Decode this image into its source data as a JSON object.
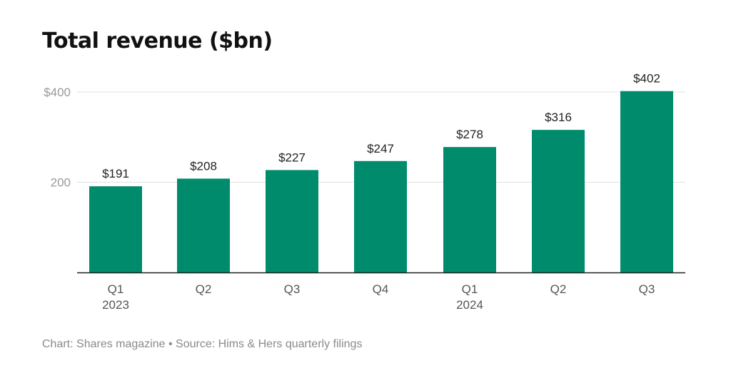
{
  "chart_data": {
    "type": "bar",
    "title": "Total revenue ($bn)",
    "categories": [
      "Q1",
      "Q2",
      "Q3",
      "Q4",
      "Q1",
      "Q2",
      "Q3"
    ],
    "year_labels": [
      "2023",
      "",
      "",
      "",
      "2024",
      "",
      ""
    ],
    "values": [
      191,
      208,
      227,
      247,
      278,
      316,
      402
    ],
    "data_labels": [
      "$191",
      "$208",
      "$227",
      "$247",
      "$278",
      "$316",
      "$402"
    ],
    "y_ticks": [
      {
        "value": 200,
        "label": "200"
      },
      {
        "value": 400,
        "label": "$400"
      }
    ],
    "ylim": [
      0,
      400
    ],
    "grid": true,
    "bar_color": "#008c6c",
    "xlabel": "",
    "ylabel": ""
  },
  "footer": {
    "credit": "Chart: Shares magazine • Source: Hims & Hers quarterly filings"
  }
}
